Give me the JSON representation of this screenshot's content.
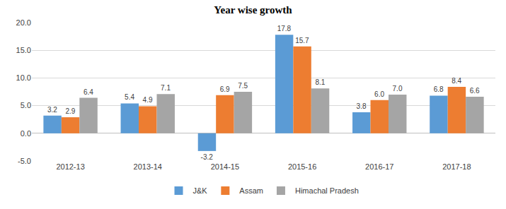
{
  "chart_data": {
    "type": "bar",
    "title": "Year wise growth",
    "categories": [
      "2012-13",
      "2013-14",
      "2014-15",
      "2015-16",
      "2016-17",
      "2017-18"
    ],
    "series": [
      {
        "name": "J&K",
        "color": "#5B9BD5",
        "values": [
          3.2,
          5.4,
          -3.2,
          17.8,
          3.8,
          6.8
        ],
        "value_labels": [
          "3.2",
          "5.4",
          "-3.2",
          "17.8",
          "3.8",
          "6.8"
        ]
      },
      {
        "name": "Assam",
        "color": "#ED7D31",
        "values": [
          2.9,
          4.9,
          6.9,
          15.7,
          6.0,
          8.4
        ],
        "value_labels": [
          "2.9",
          "4.9",
          "6.9",
          "15.7",
          "6.0",
          "8.4"
        ]
      },
      {
        "name": "Himachal Pradesh",
        "color": "#A5A5A5",
        "values": [
          6.4,
          7.1,
          7.5,
          8.1,
          7.0,
          6.6
        ],
        "value_labels": [
          "6.4",
          "7.1",
          "7.5",
          "8.1",
          "7.0",
          "6.6"
        ]
      }
    ],
    "ylim": [
      -5,
      20
    ],
    "yticks": [
      {
        "value": -5,
        "label": "-5.0"
      },
      {
        "value": 0,
        "label": "0.0"
      },
      {
        "value": 5,
        "label": "5.0"
      },
      {
        "value": 10,
        "label": "10.0"
      },
      {
        "value": 15,
        "label": "15.0"
      },
      {
        "value": 20,
        "label": "20.0"
      }
    ],
    "grid": true,
    "legend": "bottom",
    "data_labels": true
  }
}
